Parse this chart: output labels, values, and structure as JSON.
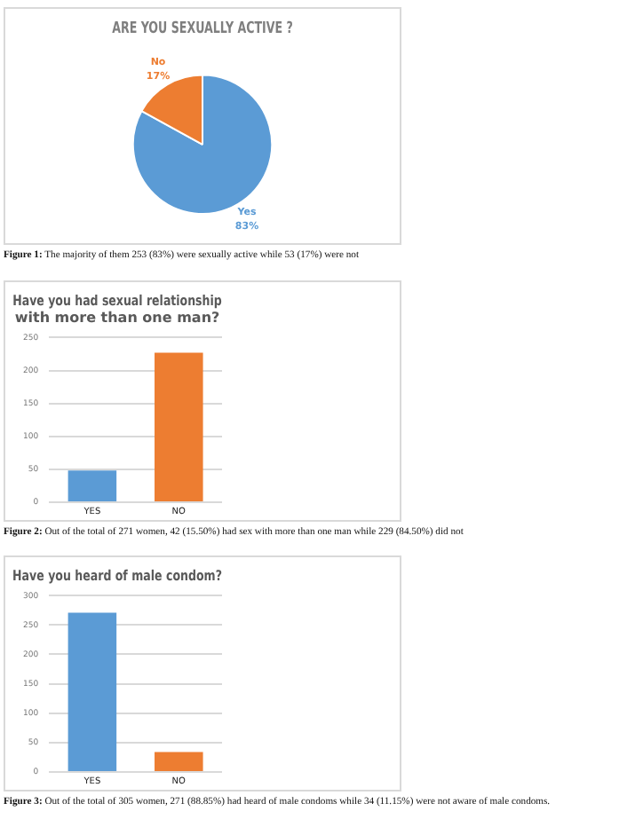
{
  "chart_data": [
    {
      "type": "pie",
      "title": "ARE YOU SEXUALLY ACTIVE ?",
      "categories": [
        "Yes",
        "No"
      ],
      "values": [
        83,
        17
      ],
      "colors": [
        "#5b9bd5",
        "#ed7d31"
      ],
      "value_labels": [
        "83%",
        "17%"
      ],
      "legend": false,
      "annotations": [
        "Figure 1: The majority of them 253 (83%) were sexually active while 53 (17%) were not"
      ]
    },
    {
      "type": "bar",
      "title": "Have you had sexual relationship with more than one man?",
      "categories": [
        "YES",
        "NO"
      ],
      "values": [
        48,
        227
      ],
      "colors": [
        "#5b9bd5",
        "#ed7d31"
      ],
      "ylim": [
        0,
        250
      ],
      "yticks": [
        0,
        50,
        100,
        150,
        200,
        250
      ],
      "grid": "y",
      "legend": false,
      "annotations": [
        "Figure 2: Out of the total of 271 women, 42 (15.50%) had sex with more than one man while 229 (84.50%) did not"
      ]
    },
    {
      "type": "bar",
      "title": "Have you heard of male condom?",
      "categories": [
        "YES",
        "NO"
      ],
      "values": [
        271,
        34
      ],
      "colors": [
        "#5b9bd5",
        "#ed7d31"
      ],
      "ylim": [
        0,
        300
      ],
      "yticks": [
        0,
        50,
        100,
        150,
        200,
        250,
        300
      ],
      "grid": "y",
      "legend": false,
      "annotations": [
        "Figure 3: Out of the total of 305 women, 271 (88.85%) had heard of male condoms while 34 (11.15%) were not aware of male condoms."
      ]
    }
  ]
}
